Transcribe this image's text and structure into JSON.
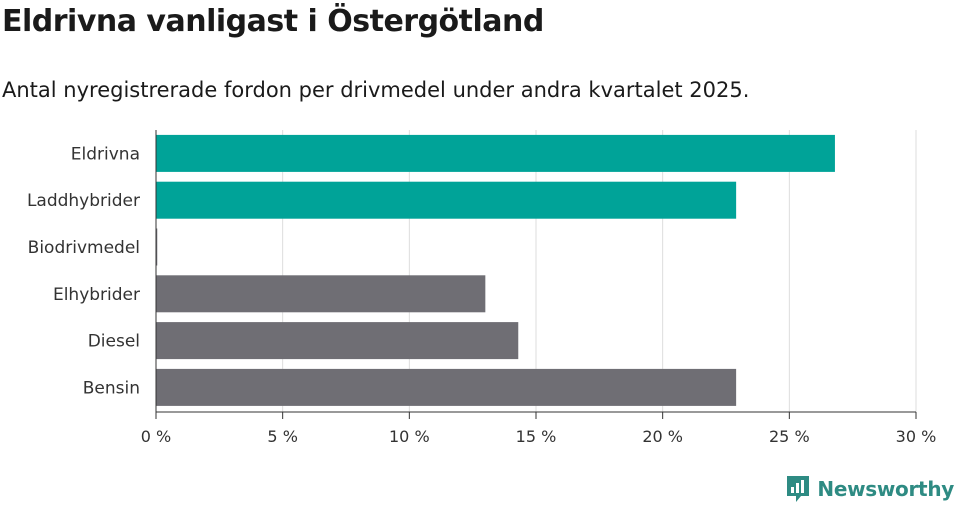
{
  "title": "Eldrivna vanligast i Östergötland",
  "subtitle": "Antal nyregistrerade fordon per drivmedel under andra kvartalet 2025.",
  "brand": "Newsworthy",
  "colors": {
    "highlight": "#00a398",
    "muted": "#6f6e74",
    "grid": "#dddddd",
    "axis": "#333333",
    "brand": "#2e8b83"
  },
  "chart_data": {
    "type": "bar",
    "orientation": "horizontal",
    "categories": [
      "Eldrivna",
      "Laddhybrider",
      "Biodrivmedel",
      "Elhybrider",
      "Diesel",
      "Bensin"
    ],
    "values": [
      26.8,
      22.9,
      0.05,
      13.0,
      14.3,
      22.9
    ],
    "highlight": [
      true,
      true,
      false,
      false,
      false,
      false
    ],
    "xlim": [
      0,
      30
    ],
    "xticks": [
      0,
      5,
      10,
      15,
      20,
      25,
      30
    ],
    "xtick_labels": [
      "0 %",
      "5 %",
      "10 %",
      "15 %",
      "20 %",
      "25 %",
      "30 %"
    ],
    "grid": true,
    "legend": "none"
  }
}
